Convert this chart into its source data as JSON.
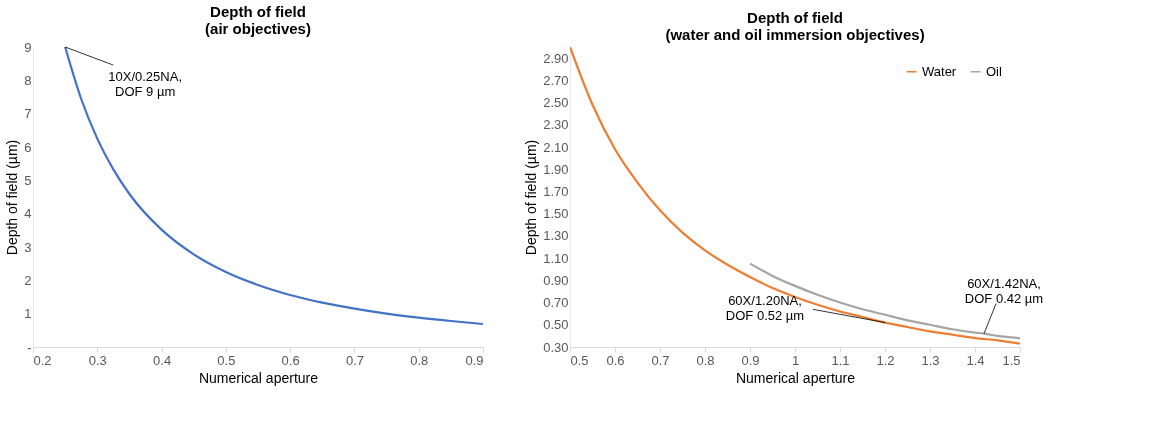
{
  "chart_data": [
    {
      "type": "line",
      "title": "Depth of field\n(air objectives)",
      "xlabel": "Numerical aperture",
      "ylabel": "Depth of field (µm)",
      "series": [
        {
          "color": "#4472c4",
          "x": [
            0.25,
            0.275,
            0.3,
            0.325,
            0.35,
            0.4,
            0.45,
            0.5,
            0.55,
            0.6,
            0.65,
            0.7,
            0.75,
            0.8,
            0.85,
            0.9
          ],
          "values": [
            9.0,
            7.44,
            6.25,
            5.33,
            4.59,
            3.52,
            2.78,
            2.25,
            1.86,
            1.56,
            1.33,
            1.15,
            1.0,
            0.88,
            0.78,
            0.69
          ]
        }
      ],
      "xlim": [
        0.2,
        0.9
      ],
      "xticks": [
        0.2,
        0.3,
        0.4,
        0.5,
        0.6,
        0.7,
        0.8,
        0.9
      ],
      "ylim": [
        0,
        9
      ],
      "yticks": [
        {
          "value": 0,
          "label": "-"
        },
        1,
        2,
        3,
        4,
        5,
        6,
        7,
        8,
        9
      ],
      "grid": false,
      "legend": false,
      "line_style": "solid",
      "marker": "none",
      "annotations": [
        {
          "text": "10X/0.25NA,\nDOF 9 µm",
          "x": 0.25,
          "y": 9.0
        }
      ]
    },
    {
      "type": "line",
      "title": "Depth of field\n(water and oil immersion objectives)",
      "xlabel": "Numerical aperture",
      "ylabel": "Depth of field (µm)",
      "series": [
        {
          "name": "Water",
          "color": "#ed7d31",
          "x": [
            0.5,
            0.55,
            0.6,
            0.65,
            0.7,
            0.75,
            0.8,
            0.85,
            0.9,
            0.95,
            1.0,
            1.05,
            1.1,
            1.15,
            1.2,
            1.25,
            1.3,
            1.35,
            1.4,
            1.45,
            1.5
          ],
          "values": [
            3.0,
            2.48,
            2.08,
            1.78,
            1.53,
            1.33,
            1.17,
            1.04,
            0.93,
            0.83,
            0.75,
            0.68,
            0.62,
            0.57,
            0.52,
            0.48,
            0.44,
            0.41,
            0.38,
            0.36,
            0.33
          ]
        },
        {
          "name": "Oil",
          "color": "#a5a5a5",
          "x": [
            0.9,
            0.95,
            1.0,
            1.05,
            1.1,
            1.15,
            1.2,
            1.25,
            1.3,
            1.35,
            1.4,
            1.42,
            1.45,
            1.5
          ],
          "values": [
            1.05,
            0.94,
            0.85,
            0.77,
            0.7,
            0.64,
            0.59,
            0.54,
            0.5,
            0.46,
            0.43,
            0.42,
            0.4,
            0.38
          ]
        }
      ],
      "xlim": [
        0.5,
        1.5
      ],
      "xticks": [
        0.5,
        0.6,
        0.7,
        0.8,
        0.9,
        1,
        1.1,
        1.2,
        1.3,
        1.4,
        1.5
      ],
      "ylim": [
        0.3,
        3.0
      ],
      "yticks": [
        {
          "value": 0.3,
          "label": "0.30"
        },
        {
          "value": 0.5,
          "label": "0.50"
        },
        {
          "value": 0.7,
          "label": "0.70"
        },
        {
          "value": 0.9,
          "label": "0.90"
        },
        {
          "value": 1.1,
          "label": "1.10"
        },
        {
          "value": 1.3,
          "label": "1.30"
        },
        {
          "value": 1.5,
          "label": "1.50"
        },
        {
          "value": 1.7,
          "label": "1.70"
        },
        {
          "value": 1.9,
          "label": "1.90"
        },
        {
          "value": 2.1,
          "label": "2.10"
        },
        {
          "value": 2.3,
          "label": "2.30"
        },
        {
          "value": 2.5,
          "label": "2.50"
        },
        {
          "value": 2.7,
          "label": "2.70"
        },
        {
          "value": 2.9,
          "label": "2.90"
        }
      ],
      "grid": false,
      "legend": "top right",
      "line_style": "solid",
      "marker": "none",
      "annotations": [
        {
          "text": "60X/1.20NA,\nDOF 0.52 µm",
          "x": 1.2,
          "y": 0.52
        },
        {
          "text": "60X/1.42NA,\nDOF 0.42 µm",
          "x": 1.42,
          "y": 0.42
        }
      ]
    }
  ]
}
